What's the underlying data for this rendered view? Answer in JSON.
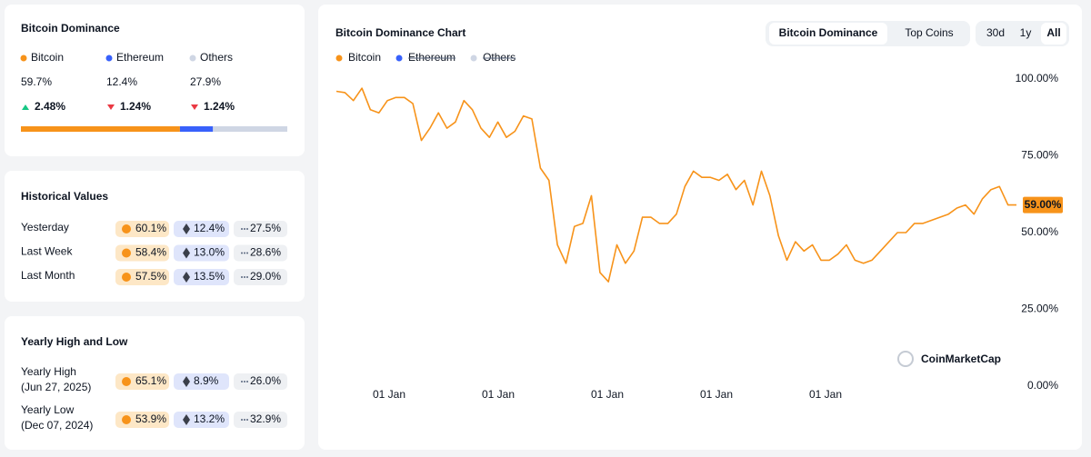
{
  "summary": {
    "title": "Bitcoin Dominance",
    "coins": [
      {
        "name": "Bitcoin",
        "color": "#f7931a",
        "value": 59.7,
        "value_label": "59.7%",
        "change": "2.48%",
        "trend": "up"
      },
      {
        "name": "Ethereum",
        "color": "#3861fb",
        "value": 12.4,
        "value_label": "12.4%",
        "change": "1.24%",
        "trend": "down"
      },
      {
        "name": "Others",
        "color": "#cfd6e4",
        "value": 27.9,
        "value_label": "27.9%",
        "change": "1.24%",
        "trend": "down"
      }
    ]
  },
  "historical": {
    "title": "Historical Values",
    "rows": [
      {
        "label": "Yesterday",
        "values": [
          "60.1%",
          "12.4%",
          "27.5%"
        ]
      },
      {
        "label": "Last Week",
        "values": [
          "58.4%",
          "13.0%",
          "28.6%"
        ]
      },
      {
        "label": "Last Month",
        "values": [
          "57.5%",
          "13.5%",
          "29.0%"
        ]
      }
    ]
  },
  "yearly": {
    "title": "Yearly High and Low",
    "rows": [
      {
        "label": "Yearly High",
        "date": "(Jun 27, 2025)",
        "values": [
          "65.1%",
          "8.9%",
          "26.0%"
        ]
      },
      {
        "label": "Yearly Low",
        "date": "(Dec 07, 2024)",
        "values": [
          "53.9%",
          "13.2%",
          "32.9%"
        ]
      }
    ]
  },
  "chart_data": {
    "type": "line",
    "title": "Bitcoin Dominance Chart",
    "tabs": [
      "Bitcoin Dominance",
      "Top Coins"
    ],
    "active_tab": 0,
    "ranges": [
      "30d",
      "1y",
      "All"
    ],
    "active_range": 2,
    "series": [
      {
        "name": "Bitcoin",
        "color": "#f7931a",
        "values": [
          96,
          95.6,
          93,
          97,
          90,
          89,
          93,
          94,
          94,
          92,
          80,
          84,
          89,
          84,
          86,
          93,
          90,
          84,
          81,
          86,
          81,
          83,
          88,
          87,
          71,
          67,
          46,
          40,
          52,
          53,
          62,
          37,
          34,
          46,
          40,
          44,
          55,
          55,
          53,
          53,
          56,
          65,
          70,
          68,
          68,
          67,
          69,
          64,
          67,
          59,
          70,
          62,
          49,
          41,
          47,
          44,
          46,
          41,
          41,
          43,
          46,
          41,
          40,
          41,
          44,
          47,
          50,
          50,
          53,
          53,
          54,
          55,
          56,
          58,
          59,
          56,
          61,
          64,
          65,
          59,
          59
        ]
      }
    ],
    "hidden_series": [
      {
        "name": "Ethereum",
        "color": "#3861fb"
      },
      {
        "name": "Others",
        "color": "#cfd6e4"
      }
    ],
    "end_label": "59.00%",
    "ylim": [
      0,
      100
    ],
    "yticks": [
      {
        "value": 0,
        "label": "0.00%"
      },
      {
        "value": 25,
        "label": "25.00%"
      },
      {
        "value": 50,
        "label": "50.00%"
      },
      {
        "value": 75,
        "label": "75.00%"
      },
      {
        "value": 100,
        "label": "100.00%"
      }
    ],
    "xticks": [
      "01 Jan",
      "01 Jan",
      "01 Jan",
      "01 Jan",
      "01 Jan"
    ],
    "grid": false,
    "watermark": "CoinMarketCap"
  }
}
